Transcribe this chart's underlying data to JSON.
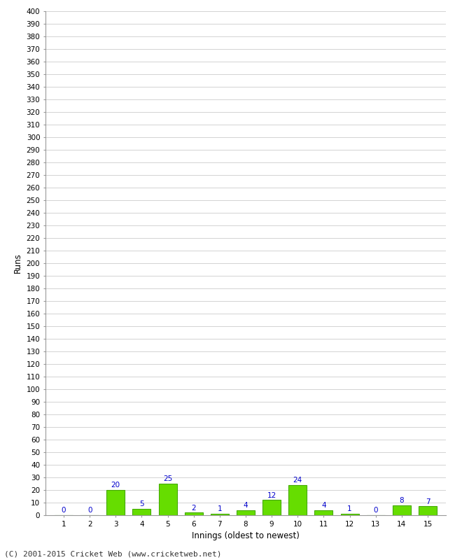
{
  "innings": [
    1,
    2,
    3,
    4,
    5,
    6,
    7,
    8,
    9,
    10,
    11,
    12,
    13,
    14,
    15
  ],
  "runs": [
    0,
    0,
    20,
    5,
    25,
    2,
    1,
    4,
    12,
    24,
    4,
    1,
    0,
    8,
    7
  ],
  "bar_color": "#66dd00",
  "bar_edge_color": "#44aa00",
  "label_color": "#0000cc",
  "background_color": "#ffffff",
  "grid_color": "#cccccc",
  "ylabel": "Runs",
  "xlabel": "Innings (oldest to newest)",
  "footer": "(C) 2001-2015 Cricket Web (www.cricketweb.net)",
  "ytick_step": 10,
  "ymin": 0,
  "ymax": 400,
  "label_fontsize": 7.5,
  "axis_fontsize": 8.5,
  "tick_fontsize": 7.5,
  "footer_fontsize": 8
}
